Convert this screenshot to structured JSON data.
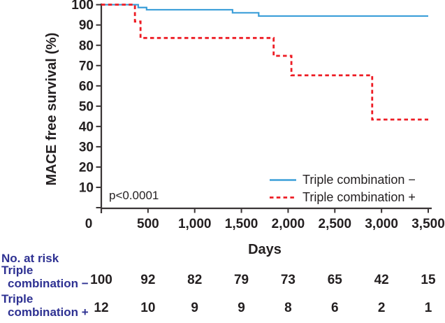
{
  "chart_data": {
    "type": "line",
    "subtype": "kaplan-meier-step-curve",
    "title": "",
    "xlabel": "Days",
    "ylabel": "MACE free survival (%)",
    "p_value": "p<0.0001",
    "xlim": [
      0,
      3500
    ],
    "ylim": [
      0,
      100
    ],
    "x_ticks": [
      0,
      500,
      1000,
      1500,
      2000,
      2500,
      3000,
      3500
    ],
    "x_tick_labels": [
      "0",
      "500",
      "1,000",
      "1,500",
      "2,000",
      "2,500",
      "3,000",
      "3,500"
    ],
    "y_ticks": [
      10,
      20,
      30,
      40,
      50,
      60,
      70,
      80,
      90,
      100
    ],
    "y_tick_labels": [
      "10",
      "20",
      "30",
      "40",
      "50",
      "60",
      "70",
      "80",
      "90",
      "100"
    ],
    "grid": false,
    "legend_position": "lower right",
    "series": [
      {
        "name": "Triple combination −",
        "color": "#3C9FD9",
        "line_style": "solid",
        "steps_day_percent": [
          [
            0,
            100
          ],
          [
            395,
            98.6
          ],
          [
            485,
            97.5
          ],
          [
            1405,
            96.0
          ],
          [
            1685,
            94.4
          ]
        ],
        "end_day": 3500,
        "final_value": 94.4
      },
      {
        "name": "Triple combination +",
        "color": "#ED1C24",
        "line_style": "dashed",
        "steps_day_percent": [
          [
            0,
            100
          ],
          [
            360,
            91.7
          ],
          [
            420,
            83.6
          ],
          [
            1845,
            74.8
          ],
          [
            2035,
            65.2
          ],
          [
            2900,
            43.4
          ]
        ],
        "end_day": 3500,
        "final_value": 43.4
      }
    ]
  },
  "risk_table": {
    "title": "No. at risk",
    "time_points": [
      0,
      500,
      1000,
      1500,
      2000,
      2500,
      3000,
      3500
    ],
    "rows": [
      {
        "label_line1": "Triple",
        "label_line2": "combination −",
        "values": [
          "100",
          "92",
          "82",
          "79",
          "73",
          "65",
          "42",
          "15"
        ]
      },
      {
        "label_line1": "Triple",
        "label_line2": "combination +",
        "values": [
          "12",
          "10",
          "9",
          "9",
          "8",
          "6",
          "2",
          "1"
        ]
      }
    ]
  },
  "colors": {
    "axis": "#3A3536",
    "tick_text": "#231F20",
    "series_minus_blue": "#3C9FD9",
    "series_plus_red": "#ED1C24",
    "risk_label_blue": "#2E3192"
  }
}
